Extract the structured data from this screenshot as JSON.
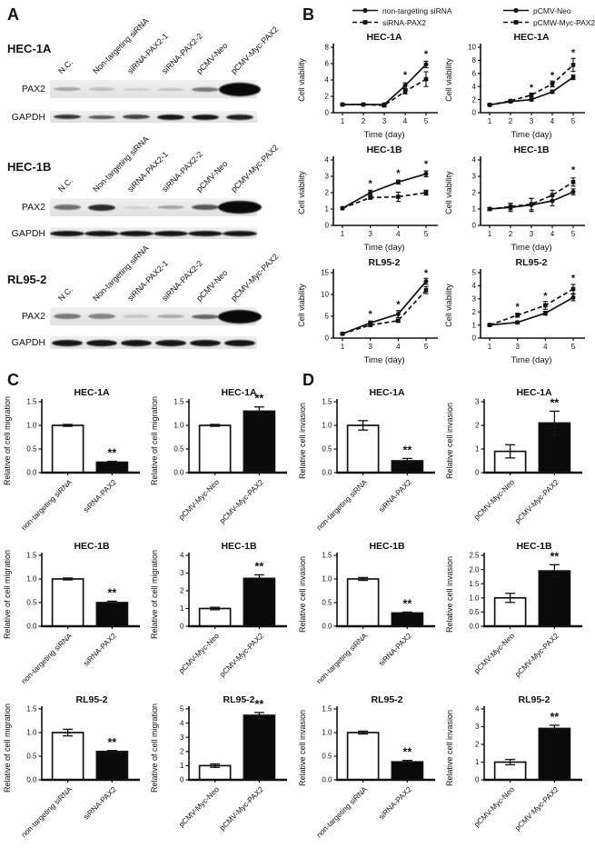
{
  "figure": {
    "panel_a_label": "A",
    "panel_b_label": "B",
    "panel_c_label": "C",
    "panel_d_label": "D"
  },
  "panel_a": {
    "lane_labels": [
      "N.C.",
      "Non-targeting siRNA",
      "siRNA-PAX2-1",
      "siRNA-PAX2-2",
      "pCMV-Neo",
      "pCMV-Myc-PAX2"
    ],
    "protein_labels": [
      "PAX2",
      "GAPDH"
    ],
    "blots": [
      {
        "cell_line": "HEC-1A",
        "pax2_bands": [
          {
            "o": 0.3,
            "h": 4
          },
          {
            "o": 0.18,
            "h": 4
          },
          {
            "o": 0.12,
            "h": 3
          },
          {
            "o": 0.18,
            "h": 3
          },
          {
            "o": 0.5,
            "h": 5
          },
          {
            "o": 1,
            "h": 15,
            "w": 46
          }
        ],
        "gapdh_bands": [
          {
            "o": 0.8,
            "h": 5
          },
          {
            "o": 0.65,
            "h": 4
          },
          {
            "o": 0.75,
            "h": 5
          },
          {
            "o": 0.95,
            "h": 6
          },
          {
            "o": 0.95,
            "h": 6
          },
          {
            "o": 0.9,
            "h": 6
          }
        ]
      },
      {
        "cell_line": "HEC-1B",
        "pax2_bands": [
          {
            "o": 0.55,
            "h": 6
          },
          {
            "o": 0.85,
            "h": 7
          },
          {
            "o": 0.1,
            "h": 3
          },
          {
            "o": 0.3,
            "h": 4
          },
          {
            "o": 0.65,
            "h": 6
          },
          {
            "o": 1,
            "h": 14,
            "w": 48
          }
        ],
        "gapdh_bands": [
          {
            "o": 0.95,
            "h": 6,
            "w": 38
          },
          {
            "o": 0.95,
            "h": 6,
            "w": 38
          },
          {
            "o": 0.95,
            "h": 6,
            "w": 38
          },
          {
            "o": 0.95,
            "h": 6,
            "w": 38
          },
          {
            "o": 0.95,
            "h": 6,
            "w": 38
          },
          {
            "o": 0.95,
            "h": 6,
            "w": 38
          }
        ]
      },
      {
        "cell_line": "RL95-2",
        "pax2_bands": [
          {
            "o": 0.5,
            "h": 6
          },
          {
            "o": 0.45,
            "h": 6
          },
          {
            "o": 0.15,
            "h": 4
          },
          {
            "o": 0.28,
            "h": 4
          },
          {
            "o": 0.6,
            "h": 5
          },
          {
            "o": 1,
            "h": 15,
            "w": 48
          }
        ],
        "gapdh_bands": [
          {
            "o": 0.95,
            "h": 7,
            "w": 34
          },
          {
            "o": 0.95,
            "h": 7,
            "w": 34
          },
          {
            "o": 0.95,
            "h": 7,
            "w": 34
          },
          {
            "o": 0.95,
            "h": 7,
            "w": 34
          },
          {
            "o": 0.95,
            "h": 7,
            "w": 34
          },
          {
            "o": 0.95,
            "h": 7,
            "w": 34
          }
        ]
      }
    ]
  },
  "panel_b_legends": [
    {
      "entries": [
        {
          "label": "non-targeting siRNA",
          "style": "solid",
          "marker": "circle"
        },
        {
          "label": "siRNA-PAX2",
          "style": "dashed",
          "marker": "square"
        }
      ]
    },
    {
      "entries": [
        {
          "label": "pCMV-Neo",
          "style": "solid",
          "marker": "circle"
        },
        {
          "label": "pCMW-Myc-PAX2",
          "style": "dashed",
          "marker": "square"
        }
      ]
    }
  ],
  "colors": {
    "ink": "#111111",
    "bar_black": "#0a0a0a",
    "bar_white": "#ffffff"
  },
  "chart_data": [
    {
      "panel": "B",
      "type": "line",
      "title": "HEC-1A",
      "ylabel": "Cell viability",
      "xlabel": "Time (day)",
      "ylim": [
        0,
        8
      ],
      "yticks": [
        "0",
        "2",
        "4",
        "6",
        "8"
      ],
      "x": [
        "1",
        "2",
        "3",
        "4",
        "5"
      ],
      "series": [
        {
          "name": "non-targeting siRNA",
          "style": "solid",
          "marker": "circle",
          "values": [
            1,
            1,
            1,
            3.3,
            5.9
          ],
          "err": [
            0.08,
            0.08,
            0.15,
            0.35,
            0.4
          ]
        },
        {
          "name": "siRNA-PAX2",
          "style": "dashed",
          "marker": "square",
          "values": [
            1,
            1,
            0.9,
            2.6,
            4.1
          ],
          "err": [
            0.08,
            0.08,
            0.2,
            0.3,
            0.9
          ]
        }
      ],
      "stars": [
        {
          "x": "4",
          "y": 4.2
        },
        {
          "x": "5",
          "y": 6.8
        }
      ]
    },
    {
      "panel": "B",
      "type": "line",
      "title": "HEC-1A",
      "ylabel": "Cell viability",
      "xlabel": "Time (day)",
      "ylim": [
        0,
        10
      ],
      "yticks": [
        "0",
        "2",
        "4",
        "6",
        "8",
        "10"
      ],
      "x": [
        "1",
        "2",
        "3",
        "4",
        "5"
      ],
      "series": [
        {
          "name": "pCMV-Neo",
          "style": "solid",
          "marker": "circle",
          "values": [
            1.2,
            1.7,
            2.0,
            3.2,
            5.4
          ],
          "err": [
            0.1,
            0.15,
            0.2,
            0.25,
            0.35
          ]
        },
        {
          "name": "pCMW-Myc-PAX2",
          "style": "dashed",
          "marker": "square",
          "values": [
            1.2,
            1.8,
            2.7,
            4.4,
            7.3
          ],
          "err": [
            0.1,
            0.15,
            0.3,
            0.45,
            1.0
          ]
        }
      ],
      "stars": [
        {
          "x": "3",
          "y": 3.3
        },
        {
          "x": "4",
          "y": 5.2
        },
        {
          "x": "5",
          "y": 8.7
        }
      ]
    },
    {
      "panel": "B",
      "type": "line",
      "title": "HEC-1B",
      "ylabel": "Cell viability",
      "xlabel": "Time (day)",
      "ylim": [
        0,
        4
      ],
      "yticks": [
        "0",
        "1",
        "2",
        "3",
        "4"
      ],
      "x": [
        "1",
        "3",
        "4",
        "5"
      ],
      "series": [
        {
          "name": "non-targeting siRNA",
          "style": "solid",
          "marker": "circle",
          "values": [
            1.05,
            2.0,
            2.65,
            3.15
          ],
          "err": [
            0.05,
            0.15,
            0.12,
            0.18
          ]
        },
        {
          "name": "siRNA-PAX2",
          "style": "dashed",
          "marker": "square",
          "values": [
            1.05,
            1.7,
            1.75,
            2.0
          ],
          "err": [
            0.05,
            0.1,
            0.28,
            0.15
          ]
        }
      ],
      "stars": [
        {
          "x": "3",
          "y": 2.35
        },
        {
          "x": "4",
          "y": 3.0
        },
        {
          "x": "5",
          "y": 3.55
        }
      ]
    },
    {
      "panel": "B",
      "type": "line",
      "title": "HEC-1B",
      "ylabel": "Cell viability",
      "xlabel": "Time (day)",
      "ylim": [
        0,
        4
      ],
      "yticks": [
        "0",
        "1",
        "2",
        "3",
        "4"
      ],
      "x": [
        "1",
        "2",
        "3",
        "4",
        "5"
      ],
      "series": [
        {
          "name": "pCMV-Neo",
          "style": "solid",
          "marker": "circle",
          "values": [
            1.0,
            1.1,
            1.25,
            1.5,
            2.05
          ],
          "err": [
            0.08,
            0.25,
            0.4,
            0.3,
            0.18
          ]
        },
        {
          "name": "pCMW-Myc-PAX2",
          "style": "dashed",
          "marker": "square",
          "values": [
            1.0,
            1.15,
            1.3,
            1.85,
            2.65
          ],
          "err": [
            0.08,
            0.2,
            0.35,
            0.3,
            0.25
          ]
        }
      ],
      "stars": [
        {
          "x": "5",
          "y": 3.2
        }
      ]
    },
    {
      "panel": "B",
      "type": "line",
      "title": "RL95-2",
      "ylabel": "Cell viability",
      "xlabel": "Time (day)",
      "ylim": [
        0,
        15
      ],
      "yticks": [
        "0",
        "5",
        "10",
        "15"
      ],
      "x": [
        "1",
        "3",
        "4",
        "5"
      ],
      "series": [
        {
          "name": "non-targeting siRNA",
          "style": "solid",
          "marker": "circle",
          "values": [
            1.0,
            3.5,
            5.5,
            13.0
          ],
          "err": [
            0.1,
            0.4,
            0.8,
            0.7
          ]
        },
        {
          "name": "siRNA-PAX2",
          "style": "dashed",
          "marker": "square",
          "values": [
            1.0,
            3.0,
            4.0,
            11.0
          ],
          "err": [
            0.1,
            0.3,
            0.4,
            0.8
          ]
        }
      ],
      "stars": [
        {
          "x": "3",
          "y": 4.8
        },
        {
          "x": "4",
          "y": 7.0
        },
        {
          "x": "5",
          "y": 14.2
        }
      ]
    },
    {
      "panel": "B",
      "type": "line",
      "title": "RL95-2",
      "ylabel": "Cell viability",
      "xlabel": "Time (day)",
      "ylim": [
        0,
        5
      ],
      "yticks": [
        "0",
        "1",
        "2",
        "3",
        "4",
        "5"
      ],
      "x": [
        "1",
        "3",
        "4",
        "5"
      ],
      "series": [
        {
          "name": "pCMV-Neo",
          "style": "solid",
          "marker": "circle",
          "values": [
            1.0,
            1.2,
            1.9,
            3.1
          ],
          "err": [
            0.08,
            0.1,
            0.15,
            0.25
          ]
        },
        {
          "name": "pCMW-Myc-PAX2",
          "style": "dashed",
          "marker": "square",
          "values": [
            1.0,
            1.75,
            2.5,
            3.75
          ],
          "err": [
            0.08,
            0.15,
            0.3,
            0.35
          ]
        }
      ],
      "stars": [
        {
          "x": "3",
          "y": 2.15
        },
        {
          "x": "4",
          "y": 3.0
        },
        {
          "x": "5",
          "y": 4.35
        }
      ]
    },
    {
      "panel": "C",
      "type": "bar",
      "title": "HEC-1A",
      "ylabel": "Relative of cell migration",
      "ylim": [
        0,
        1.5
      ],
      "yticks": [
        "0.0",
        "0.5",
        "1.0",
        "1.5"
      ],
      "bars": [
        {
          "label": "non-targeting siRNA",
          "value": 1.0,
          "err": 0.02,
          "fill": "white"
        },
        {
          "label": "siRNA-PAX2",
          "value": 0.22,
          "err": 0.02,
          "fill": "black",
          "sig": "**"
        }
      ]
    },
    {
      "panel": "C",
      "type": "bar",
      "title": "HEC-1A",
      "ylabel": "Relative of cell migration",
      "ylim": [
        0,
        1.5
      ],
      "yticks": [
        "0.0",
        "0.5",
        "1.0",
        "1.5"
      ],
      "bars": [
        {
          "label": "pCMV-Myc-Neo",
          "value": 1.0,
          "err": 0.02,
          "fill": "white"
        },
        {
          "label": "pCMV-Myc-PAX2",
          "value": 1.3,
          "err": 0.09,
          "fill": "black",
          "sig": "**"
        }
      ]
    },
    {
      "panel": "C",
      "type": "bar",
      "title": "HEC-1B",
      "ylabel": "Relative of cell migration",
      "ylim": [
        0,
        1.5
      ],
      "yticks": [
        "0.0",
        "0.5",
        "1.0",
        "1.5"
      ],
      "bars": [
        {
          "label": "non-targeting siRNA",
          "value": 1.0,
          "err": 0.02,
          "fill": "white"
        },
        {
          "label": "siRNA-PAX2",
          "value": 0.5,
          "err": 0.03,
          "fill": "black",
          "sig": "**"
        }
      ]
    },
    {
      "panel": "C",
      "type": "bar",
      "title": "HEC-1B",
      "ylabel": "Relative of cell migration",
      "ylim": [
        0,
        4
      ],
      "yticks": [
        "0",
        "1",
        "2",
        "3",
        "4"
      ],
      "bars": [
        {
          "label": "pCMV-Myc-Neo",
          "value": 1.0,
          "err": 0.07,
          "fill": "white"
        },
        {
          "label": "pCMV-Myc-PAX2",
          "value": 2.7,
          "err": 0.2,
          "fill": "black",
          "sig": "**"
        }
      ]
    },
    {
      "panel": "C",
      "type": "bar",
      "title": "RL95-2",
      "ylabel": "Relative of cell migration",
      "ylim": [
        0,
        1.5
      ],
      "yticks": [
        "0.0",
        "0.5",
        "1.0",
        "1.5"
      ],
      "bars": [
        {
          "label": "non-targeting siRNA",
          "value": 1.0,
          "err": 0.07,
          "fill": "white"
        },
        {
          "label": "siRNA-PAX2",
          "value": 0.6,
          "err": 0.02,
          "fill": "black",
          "sig": "**"
        }
      ]
    },
    {
      "panel": "C",
      "type": "bar",
      "title": "RL95-2",
      "ylabel": "Relative of cell migration",
      "ylim": [
        0,
        5
      ],
      "yticks": [
        "0",
        "1",
        "2",
        "3",
        "4",
        "5"
      ],
      "bars": [
        {
          "label": "pCMV-Myc-Neo",
          "value": 1.0,
          "err": 0.12,
          "fill": "white"
        },
        {
          "label": "pCMV-Myc-PAX2",
          "value": 4.55,
          "err": 0.2,
          "fill": "black",
          "sig": "**"
        }
      ]
    },
    {
      "panel": "D",
      "type": "bar",
      "title": "HEC-1A",
      "ylabel": "Relative cell invasion",
      "ylim": [
        0,
        1.5
      ],
      "yticks": [
        "0.0",
        "0.5",
        "1.0",
        "1.5"
      ],
      "bars": [
        {
          "label": "non-targeting siRNA",
          "value": 1.0,
          "err": 0.1,
          "fill": "white"
        },
        {
          "label": "siRNA-PAX2",
          "value": 0.25,
          "err": 0.05,
          "fill": "black",
          "sig": "**"
        }
      ]
    },
    {
      "panel": "D",
      "type": "bar",
      "title": "HEC-1A",
      "ylabel": "Relative cell invasion",
      "ylim": [
        0,
        3
      ],
      "yticks": [
        "0",
        "1",
        "2",
        "3"
      ],
      "bars": [
        {
          "label": "pCMV-Myc-Neo",
          "value": 0.9,
          "err": 0.28,
          "fill": "white"
        },
        {
          "label": "pCMV-Myc-PAX2",
          "value": 2.1,
          "err": 0.5,
          "fill": "black",
          "sig": "**"
        }
      ]
    },
    {
      "panel": "D",
      "type": "bar",
      "title": "HEC-1B",
      "ylabel": "Relative cell invasion",
      "ylim": [
        0,
        1.5
      ],
      "yticks": [
        "0.0",
        "0.5",
        "1.0",
        "1.5"
      ],
      "bars": [
        {
          "label": "non-targeting siRNA",
          "value": 1.0,
          "err": 0.03,
          "fill": "white"
        },
        {
          "label": "siRNA-PAX2",
          "value": 0.28,
          "err": 0.02,
          "fill": "black",
          "sig": "**"
        }
      ]
    },
    {
      "panel": "D",
      "type": "bar",
      "title": "HEC-1B",
      "ylabel": "Relative cell invasion",
      "ylim": [
        0,
        2.5
      ],
      "yticks": [
        "0.0",
        "0.5",
        "1.0",
        "1.5",
        "2.0",
        "2.5"
      ],
      "bars": [
        {
          "label": "pCMV-Myc-Neo",
          "value": 1.0,
          "err": 0.16,
          "fill": "white"
        },
        {
          "label": "pCMV-Myc-PAX2",
          "value": 1.95,
          "err": 0.22,
          "fill": "black",
          "sig": "**"
        }
      ]
    },
    {
      "panel": "D",
      "type": "bar",
      "title": "RL95-2",
      "ylabel": "Relative cell invasion",
      "ylim": [
        0,
        1.5
      ],
      "yticks": [
        "0.0",
        "0.5",
        "1.0",
        "1.5"
      ],
      "bars": [
        {
          "label": "non-targeting siRNA",
          "value": 1.0,
          "err": 0.03,
          "fill": "white"
        },
        {
          "label": "siRNA-PAX2",
          "value": 0.38,
          "err": 0.03,
          "fill": "black",
          "sig": "**"
        }
      ]
    },
    {
      "panel": "D",
      "type": "bar",
      "title": "RL95-2",
      "ylabel": "Relative cell invasion",
      "ylim": [
        0,
        4
      ],
      "yticks": [
        "0",
        "1",
        "2",
        "3",
        "4"
      ],
      "bars": [
        {
          "label": "pCMV-Myc-Neo",
          "value": 1.0,
          "err": 0.15,
          "fill": "white"
        },
        {
          "label": "pCMV-Myc-PAX2",
          "value": 2.9,
          "err": 0.18,
          "fill": "black",
          "sig": "**"
        }
      ]
    }
  ]
}
